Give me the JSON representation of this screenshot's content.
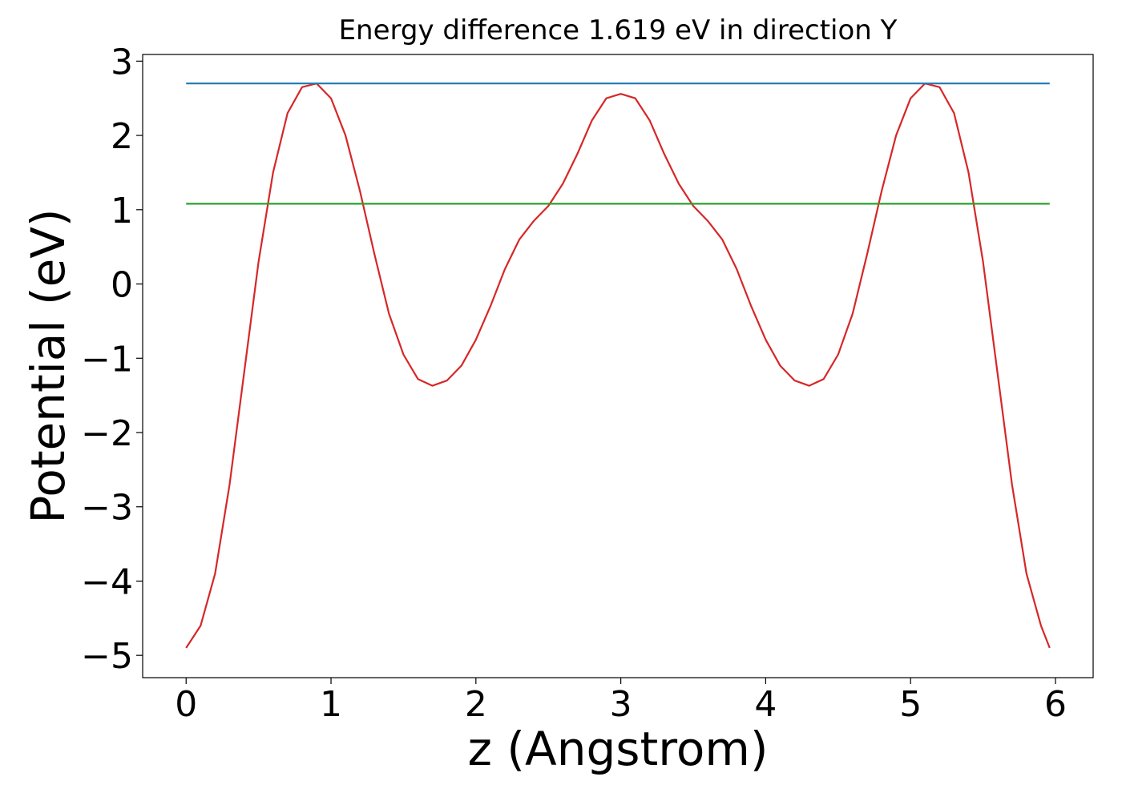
{
  "chart_data": {
    "type": "line",
    "title": "Energy difference 1.619 eV in direction Y",
    "x_label": "z (Angstrom)",
    "y_label": "Potential (eV)",
    "series": [
      {
        "color": "#d62728",
        "x": [
          0,
          0.1,
          0.2,
          0.3,
          0.4,
          0.5,
          0.6,
          0.7,
          0.8,
          0.9,
          1.0,
          1.1,
          1.2,
          1.3,
          1.4,
          1.5,
          1.6,
          1.7,
          1.8,
          1.9,
          2.0,
          2.1,
          2.2,
          2.3,
          2.4,
          2.5,
          2.6,
          2.7,
          2.8,
          2.9,
          3.0,
          3.1,
          3.2,
          3.3,
          3.4,
          3.5,
          3.6,
          3.7,
          3.8,
          3.9,
          4.0,
          4.1,
          4.2,
          4.3,
          4.4,
          4.5,
          4.6,
          4.7,
          4.8,
          4.9,
          5.0,
          5.1,
          5.2,
          5.3,
          5.4,
          5.5,
          5.6,
          5.7,
          5.8,
          5.9,
          5.96
        ],
        "values": [
          -4.9,
          -4.6,
          -3.9,
          -2.7,
          -1.2,
          0.3,
          1.5,
          2.3,
          2.65,
          2.7,
          2.5,
          2.0,
          1.25,
          0.4,
          -0.4,
          -0.95,
          -1.28,
          -1.37,
          -1.3,
          -1.1,
          -0.75,
          -0.3,
          0.2,
          0.6,
          0.85,
          1.05,
          1.35,
          1.75,
          2.2,
          2.5,
          2.56,
          2.5,
          2.2,
          1.75,
          1.35,
          1.05,
          0.85,
          0.6,
          0.2,
          -0.3,
          -0.75,
          -1.1,
          -1.3,
          -1.37,
          -1.28,
          -0.95,
          -0.4,
          0.4,
          1.25,
          2.0,
          2.5,
          2.7,
          2.65,
          2.3,
          1.5,
          0.3,
          -1.2,
          -2.7,
          -3.9,
          -4.6,
          -4.9
        ]
      },
      {
        "color": "#1f77b4",
        "x": [
          0,
          5.96
        ],
        "values": [
          2.7,
          2.7
        ]
      },
      {
        "color": "#2ca02c",
        "x": [
          0,
          5.96
        ],
        "values": [
          1.08,
          1.08
        ]
      }
    ],
    "xlim": [
      -0.3,
      6.26
    ],
    "ylim": [
      -5.3,
      3.09
    ],
    "xticks": [
      0,
      1,
      2,
      3,
      4,
      5,
      6
    ],
    "yticks": [
      {
        "value": -5,
        "label": "−5"
      },
      {
        "value": -4,
        "label": "−4"
      },
      {
        "value": -3,
        "label": "−3"
      },
      {
        "value": -2,
        "label": "−2"
      },
      {
        "value": -1,
        "label": "−1"
      },
      0,
      1,
      2,
      3
    ]
  }
}
